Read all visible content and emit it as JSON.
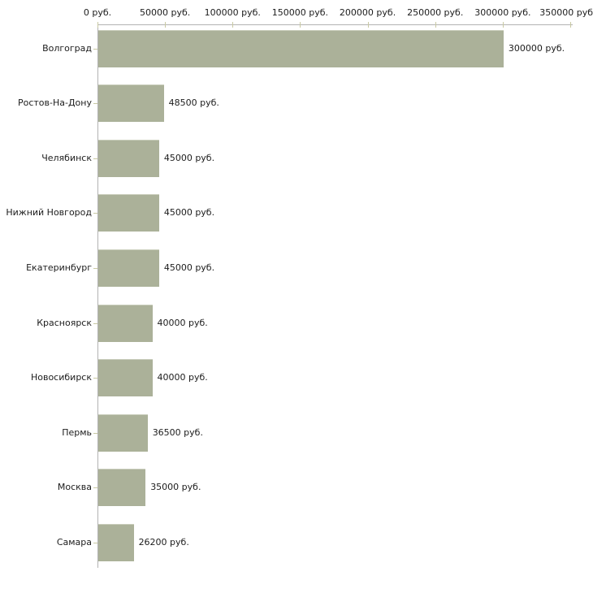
{
  "chart_data": {
    "type": "bar",
    "orientation": "horizontal",
    "title": "",
    "xlabel": "",
    "ylabel": "",
    "unit": "руб.",
    "categories": [
      "Волгоград",
      "Ростов-На-Дону",
      "Челябинск",
      "Нижний Новгород",
      "Екатеринбург",
      "Красноярск",
      "Новосибирск",
      "Пермь",
      "Москва",
      "Самара"
    ],
    "values": [
      300000,
      48500,
      45000,
      45000,
      45000,
      40000,
      40000,
      36500,
      35000,
      26200
    ],
    "value_labels": [
      "300000 руб.",
      "48500 руб.",
      "45000 руб.",
      "45000 руб.",
      "45000 руб.",
      "40000 руб.",
      "40000 руб.",
      "36500 руб.",
      "35000 руб.",
      "26200 руб."
    ],
    "x_axis": {
      "position": "top",
      "min": 0,
      "max": 350000,
      "tick_values": [
        0,
        50000,
        100000,
        150000,
        200000,
        250000,
        300000,
        350000
      ],
      "tick_labels": [
        "0 руб.",
        "50000 руб.",
        "100000 руб.",
        "150000 руб.",
        "200000 руб.",
        "250000 руб.",
        "300000 руб.",
        "350000 руб"
      ]
    },
    "legend": "none",
    "grid": "off",
    "colors": {
      "bar": "#abb199",
      "axis_line": "#b2b2b2",
      "tick_mark": "#c9c9a3",
      "text": "#1c1c1c",
      "background": "#ffffff"
    }
  }
}
